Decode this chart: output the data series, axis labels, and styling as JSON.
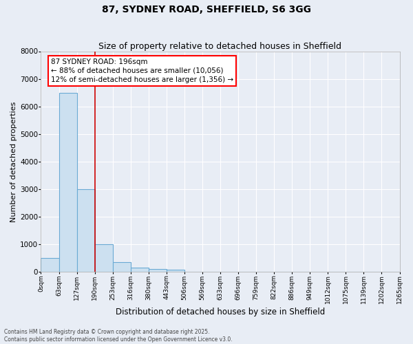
{
  "title": "87, SYDNEY ROAD, SHEFFIELD, S6 3GG",
  "subtitle": "Size of property relative to detached houses in Sheffield",
  "xlabel": "Distribution of detached houses by size in Sheffield",
  "ylabel": "Number of detached properties",
  "bar_values": [
    500,
    6500,
    3000,
    1000,
    350,
    150,
    100,
    70,
    10,
    5,
    2,
    1,
    1,
    0,
    0,
    0,
    0,
    0,
    0,
    0
  ],
  "bar_color": "#cce0f0",
  "bar_edgecolor": "#6aaad4",
  "x_labels": [
    "0sqm",
    "63sqm",
    "127sqm",
    "190sqm",
    "253sqm",
    "316sqm",
    "380sqm",
    "443sqm",
    "506sqm",
    "569sqm",
    "633sqm",
    "696sqm",
    "759sqm",
    "822sqm",
    "886sqm",
    "949sqm",
    "1012sqm",
    "1075sqm",
    "1139sqm",
    "1202sqm",
    "1265sqm"
  ],
  "ylim": [
    0,
    8000
  ],
  "yticks": [
    0,
    1000,
    2000,
    3000,
    4000,
    5000,
    6000,
    7000,
    8000
  ],
  "annotation_text": "87 SYDNEY ROAD: 196sqm\n← 88% of detached houses are smaller (10,056)\n12% of semi-detached houses are larger (1,356) →",
  "vline_x": 3,
  "bg_color": "#e8edf5",
  "grid_color": "#ffffff",
  "footer_text": "Contains HM Land Registry data © Crown copyright and database right 2025.\nContains public sector information licensed under the Open Government Licence v3.0.",
  "title_fontsize": 10,
  "subtitle_fontsize": 9,
  "label_fontsize": 8,
  "tick_fontsize": 6.5,
  "annotation_fontsize": 7.5
}
